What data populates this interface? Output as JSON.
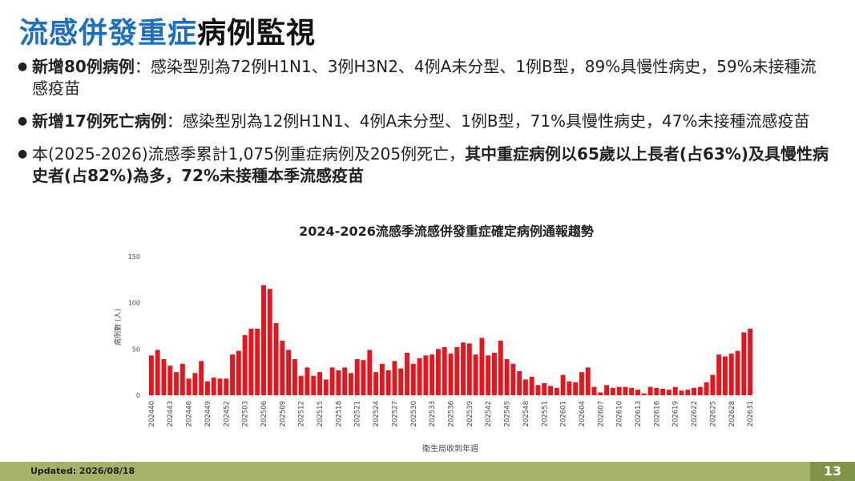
{
  "header": {
    "title_parts": [
      {
        "text": "流感併發重症",
        "color": "#1f6fc0"
      },
      {
        "text": "病例監視",
        "color": "#111111"
      }
    ]
  },
  "bullets": [
    [
      {
        "text": "新增80例病例",
        "bold": true
      },
      {
        "text": "：感染型別為72例H1N1、3例H3N2、4例A未分型、1例B型，89%具慢性病史，59%未接種流感疫苗",
        "bold": false
      }
    ],
    [
      {
        "text": "新增17例死亡病例",
        "bold": true
      },
      {
        "text": "：感染型別為12例H1N1、4例A未分型、1例B型，71%具慢性病史，47%未接種流感疫苗",
        "bold": false
      }
    ],
    [
      {
        "text": "本(2025-2026)流感季累計1,075例重症病例及205例死亡，",
        "bold": false
      },
      {
        "text": "其中重症病例以65歲以上長者(占63%)及具慢性病史者(占82%)為多，72%未接種本季流感疫苗",
        "bold": true
      }
    ]
  ],
  "chart_data": {
    "type": "bar",
    "title": "2024-2026流感季流感併發重症確定病例通報趨勢",
    "ylabel": "病例數 (人)",
    "xlabel": "衛生局收到年週",
    "color": "#e8161c",
    "ylim": [
      0,
      150
    ],
    "yticks": [
      0,
      50,
      100,
      150
    ],
    "grid": false,
    "categories": [
      "202440",
      null,
      null,
      "202443",
      null,
      null,
      "202446",
      null,
      null,
      "202449",
      null,
      null,
      "202452",
      null,
      null,
      "202503",
      null,
      null,
      "202506",
      null,
      null,
      "202509",
      null,
      null,
      "202512",
      null,
      null,
      "202515",
      null,
      null,
      "202518",
      null,
      null,
      "202521",
      null,
      null,
      "202524",
      null,
      null,
      "202527",
      null,
      null,
      "202530",
      null,
      null,
      "202533",
      null,
      null,
      "202536",
      null,
      null,
      "202539",
      null,
      null,
      "202542",
      null,
      null,
      "202545",
      null,
      null,
      "202548",
      null,
      null,
      "202551",
      null,
      null,
      "202601",
      null,
      null,
      "202604",
      null,
      null,
      "202607",
      null,
      null,
      "202610",
      null,
      null,
      "202613",
      null,
      null,
      "202616",
      null,
      null,
      "202619",
      null,
      null,
      "202622",
      null,
      null,
      "202625",
      null,
      null,
      "202628",
      null,
      null,
      "202631"
    ],
    "values": [
      43,
      49,
      39,
      32,
      25,
      34,
      18,
      24,
      37,
      15,
      19,
      18,
      18,
      44,
      48,
      65,
      72,
      72,
      119,
      115,
      78,
      59,
      49,
      39,
      21,
      30,
      21,
      25,
      17,
      30,
      27,
      30,
      24,
      39,
      38,
      49,
      25,
      34,
      27,
      37,
      29,
      46,
      34,
      40,
      43,
      44,
      50,
      52,
      45,
      52,
      57,
      56,
      44,
      62,
      43,
      46,
      59,
      39,
      34,
      26,
      17,
      20,
      11,
      13,
      10,
      8,
      22,
      15,
      14,
      25,
      30,
      9,
      3,
      11,
      8,
      9,
      9,
      8,
      6,
      2,
      9,
      8,
      7,
      6,
      9,
      5,
      6,
      8,
      9,
      14,
      22,
      44,
      42,
      45,
      48,
      68,
      72
    ]
  },
  "footer": {
    "updated": "Updated: 2026/08/18",
    "page": "13"
  }
}
